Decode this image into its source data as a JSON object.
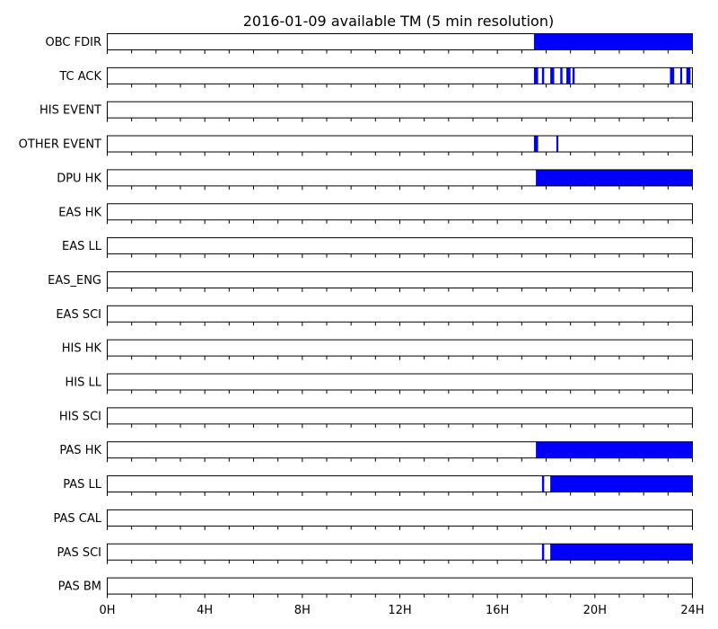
{
  "chart_data": {
    "type": "bar",
    "title": "2016-01-09 available TM (5 min resolution)",
    "x_unit": "hours",
    "xlim": [
      0,
      24
    ],
    "x_ticks": [
      {
        "value": 0,
        "label": "0H"
      },
      {
        "value": 4,
        "label": "4H"
      },
      {
        "value": 8,
        "label": "8H"
      },
      {
        "value": 12,
        "label": "12H"
      },
      {
        "value": 16,
        "label": "16H"
      },
      {
        "value": 20,
        "label": "20H"
      },
      {
        "value": 24,
        "label": "24H"
      }
    ],
    "minor_tick_step": 1,
    "fill_color": "#0000ff",
    "series": [
      {
        "name": "OBC FDIR",
        "intervals": [
          [
            17.5,
            24.0
          ]
        ]
      },
      {
        "name": "TC ACK",
        "intervals": [
          [
            17.5,
            17.67
          ],
          [
            17.83,
            17.92
          ],
          [
            18.17,
            18.33
          ],
          [
            18.58,
            18.67
          ],
          [
            18.83,
            19.0
          ],
          [
            19.08,
            19.17
          ],
          [
            23.08,
            23.25
          ],
          [
            23.5,
            23.58
          ],
          [
            23.75,
            23.92
          ]
        ]
      },
      {
        "name": "HIS EVENT",
        "intervals": []
      },
      {
        "name": "OTHER EVENT",
        "intervals": [
          [
            17.5,
            17.67
          ],
          [
            18.42,
            18.5
          ]
        ]
      },
      {
        "name": "DPU HK",
        "intervals": [
          [
            17.58,
            24.0
          ]
        ]
      },
      {
        "name": "EAS HK",
        "intervals": []
      },
      {
        "name": "EAS LL",
        "intervals": []
      },
      {
        "name": "EAS_ENG",
        "intervals": []
      },
      {
        "name": "EAS SCI",
        "intervals": []
      },
      {
        "name": "HIS HK",
        "intervals": []
      },
      {
        "name": "HIS LL",
        "intervals": []
      },
      {
        "name": "HIS SCI",
        "intervals": []
      },
      {
        "name": "PAS HK",
        "intervals": [
          [
            17.58,
            24.0
          ]
        ]
      },
      {
        "name": "PAS LL",
        "intervals": [
          [
            17.83,
            17.92
          ],
          [
            18.17,
            24.0
          ]
        ]
      },
      {
        "name": "PAS CAL",
        "intervals": []
      },
      {
        "name": "PAS SCI",
        "intervals": [
          [
            17.83,
            17.92
          ],
          [
            18.17,
            24.0
          ]
        ]
      },
      {
        "name": "PAS BM",
        "intervals": []
      }
    ]
  }
}
